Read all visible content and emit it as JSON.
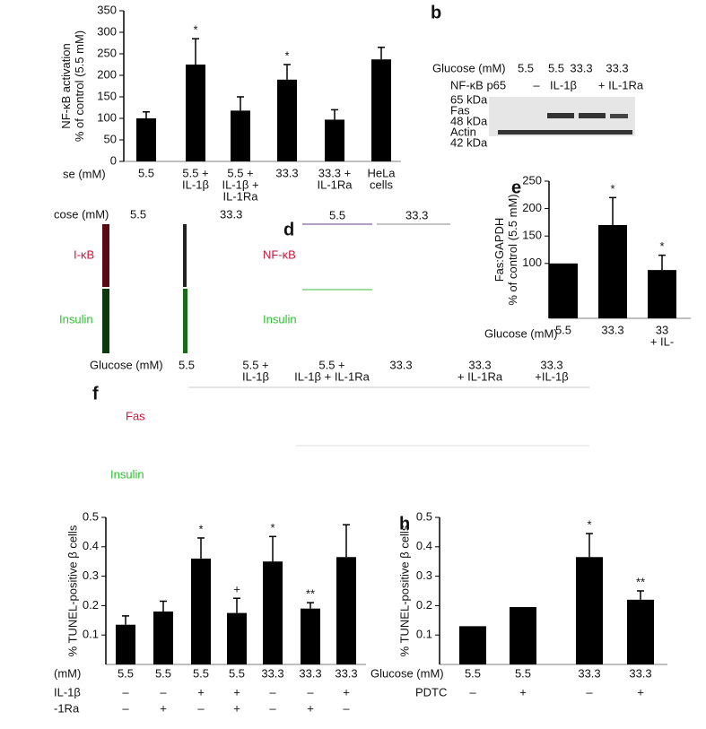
{
  "chart_data": [
    {
      "type": "bar",
      "ylabel": [
        "NF-κB activation",
        "% of control (5.5 mM)"
      ],
      "xlabel": "se (mM)",
      "categories": [
        [
          "5.5"
        ],
        [
          "5.5 +",
          "IL-1β"
        ],
        [
          "5.5 +",
          "IL-1β +",
          "IL-1Ra"
        ],
        [
          "33.3"
        ],
        [
          "33.3 +",
          "IL-1Ra"
        ],
        [
          "HeLa",
          "cells"
        ]
      ],
      "values": [
        100,
        225,
        118,
        190,
        97,
        237
      ],
      "errors": [
        15,
        60,
        32,
        35,
        23,
        28
      ],
      "annotations": [
        null,
        "*",
        null,
        "*",
        null,
        null
      ],
      "color": "#000000",
      "ylim": [
        0,
        350
      ],
      "yticks": [
        0,
        50,
        100,
        150,
        200,
        250,
        300,
        350
      ]
    },
    {
      "type": "bar",
      "panel": "e",
      "ylabel": [
        "Fas:GAPDH",
        "% of control (5.5 mM)"
      ],
      "xlabel": "Glucose (mM)",
      "categories": [
        [
          "5.5"
        ],
        [
          "33.3"
        ],
        [
          "33",
          "+ IL-"
        ]
      ],
      "values": [
        100,
        170,
        88
      ],
      "errors": [
        null,
        50,
        27
      ],
      "annotations": [
        null,
        "*",
        "*"
      ],
      "color": "#000000",
      "ylim": [
        0,
        250
      ],
      "yticks": [
        100,
        150,
        200,
        250
      ]
    },
    {
      "type": "bar",
      "ylabel": [
        "% TUNEL-positive β cells"
      ],
      "xlabel": "(mM)",
      "categories": [
        "5.5",
        "5.5",
        "5.5",
        "5.5",
        "33.3",
        "33.3",
        "33.3"
      ],
      "values": [
        0.135,
        0.18,
        0.36,
        0.175,
        0.35,
        0.19,
        0.365
      ],
      "errors": [
        0.03,
        0.035,
        0.07,
        0.05,
        0.085,
        0.02,
        0.11
      ],
      "annotations": [
        null,
        null,
        "*",
        "+",
        "*",
        "**",
        null
      ],
      "color": "#000000",
      "rows": [
        {
          "label": "IL-1β",
          "cells": [
            "–",
            "–",
            "+",
            "+",
            "–",
            "–",
            "+"
          ]
        },
        {
          "label": "-1Ra",
          "cells": [
            "–",
            "+",
            "–",
            "+",
            "–",
            "+",
            "–"
          ]
        }
      ],
      "ylim": [
        0,
        0.5
      ],
      "yticks": [
        0.1,
        0.2,
        0.3,
        0.4,
        0.5
      ]
    },
    {
      "type": "bar",
      "panel": "h",
      "ylabel": [
        "% TUNEL-positive β cells"
      ],
      "xlabel": "Glucose (mM)",
      "categories": [
        "5.5",
        "5.5",
        "33.3",
        "33.3"
      ],
      "values": [
        0.13,
        0.195,
        0.365,
        0.22
      ],
      "errors": [
        null,
        null,
        0.08,
        0.03
      ],
      "annotations": [
        null,
        null,
        "*",
        "**"
      ],
      "color": "#000000",
      "rows": [
        {
          "label": "PDTC",
          "cells": [
            "–",
            "+",
            "–",
            "+"
          ]
        }
      ],
      "ylim": [
        0,
        0.5
      ],
      "yticks": [
        0.1,
        0.2,
        0.3,
        0.4,
        0.5
      ]
    }
  ],
  "figure": {
    "b": {
      "letter": "b",
      "glucose_label": "Glucose (mM)",
      "glucose": [
        "5.5",
        "5.5",
        "33.3",
        "33.3"
      ],
      "treatment_label": "NF-κB p65",
      "treatment": [
        "–",
        "IL-1β",
        "+ IL-1Ra"
      ],
      "markers": [
        "65 kDa",
        "Fas",
        "48 kDa",
        "Actin",
        "42 kDa"
      ]
    },
    "c": {
      "glucose_label": "cose (mM)",
      "glucose": [
        "5.5",
        "33.3"
      ],
      "stains": [
        "I-κB",
        "Insulin"
      ]
    },
    "d": {
      "letter": "d",
      "glucose": [
        "5.5",
        "33.3"
      ],
      "stains": [
        "NF-κB",
        "Insulin"
      ]
    },
    "f": {
      "letter": "f",
      "glucose_label": "Glucose (mM)",
      "conditions": [
        [
          "5.5"
        ],
        [
          "5.5 +",
          "IL-1β"
        ],
        [
          "5.5 +",
          "IL-1β + IL-1Ra"
        ],
        [
          "33.3"
        ],
        [
          "33.3",
          "+ IL-1Ra"
        ],
        [
          "33.3",
          "+IL-1β"
        ]
      ],
      "stains": [
        "Fas",
        "Insulin"
      ]
    }
  }
}
